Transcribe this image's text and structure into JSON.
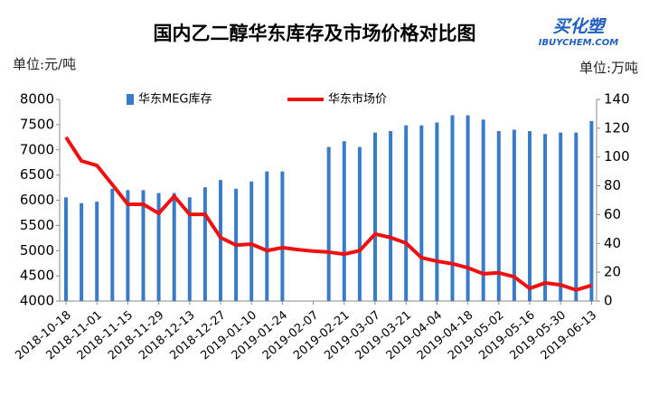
{
  "chart_data": {
    "type": "bar",
    "title": "国内乙二醇华东库存及市场价格对比图",
    "logo": "买化塑",
    "logo_sub": "IBUYCHEM.COM",
    "y_unit": "单位:元/吨",
    "y2_unit": "单位:万吨",
    "categories": [
      "2018-10-18",
      null,
      "2018-11-01",
      null,
      "2018-11-15",
      null,
      "2018-11-29",
      null,
      "2018-12-13",
      null,
      "2018-12-27",
      null,
      "2019-01-10",
      null,
      "2019-01-24",
      null,
      "2019-02-07",
      null,
      "2019-02-21",
      null,
      "2019-03-07",
      null,
      "2019-03-21",
      null,
      "2019-04-04",
      null,
      "2019-04-18",
      null,
      "2019-05-02",
      null,
      "2019-05-16",
      null,
      "2019-05-30",
      null,
      "2019-06-13"
    ],
    "series": [
      {
        "name": "华东MEG库存",
        "type": "bar",
        "axis": "y2",
        "color": "#3a7bc8",
        "values": [
          72,
          68,
          69,
          78,
          77,
          77,
          75,
          75,
          72,
          79,
          84,
          78,
          83,
          90,
          90,
          null,
          null,
          107,
          111,
          107,
          117,
          118,
          122,
          122,
          124,
          129,
          129,
          126,
          118,
          119,
          118,
          116,
          117,
          117,
          125
        ]
      },
      {
        "name": "华东市场价",
        "type": "line",
        "axis": "y",
        "color": "#ee1111",
        "values": [
          7250,
          6780,
          6690,
          6310,
          5920,
          5920,
          5740,
          6080,
          5720,
          5720,
          5260,
          5110,
          5130,
          5000,
          5060,
          5020,
          4990,
          4970,
          4930,
          5000,
          5330,
          5260,
          5150,
          4860,
          4790,
          4740,
          4660,
          4540,
          4560,
          4480,
          4250,
          4360,
          4320,
          4220,
          4310
        ]
      }
    ],
    "ylim": [
      4000,
      8000
    ],
    "yticks": [
      4000,
      4500,
      5000,
      5500,
      6000,
      6500,
      7000,
      7500,
      8000
    ],
    "y2lim": [
      0,
      140
    ],
    "y2ticks": [
      0,
      20,
      40,
      60,
      80,
      100,
      120,
      140
    ],
    "legend": "top"
  }
}
